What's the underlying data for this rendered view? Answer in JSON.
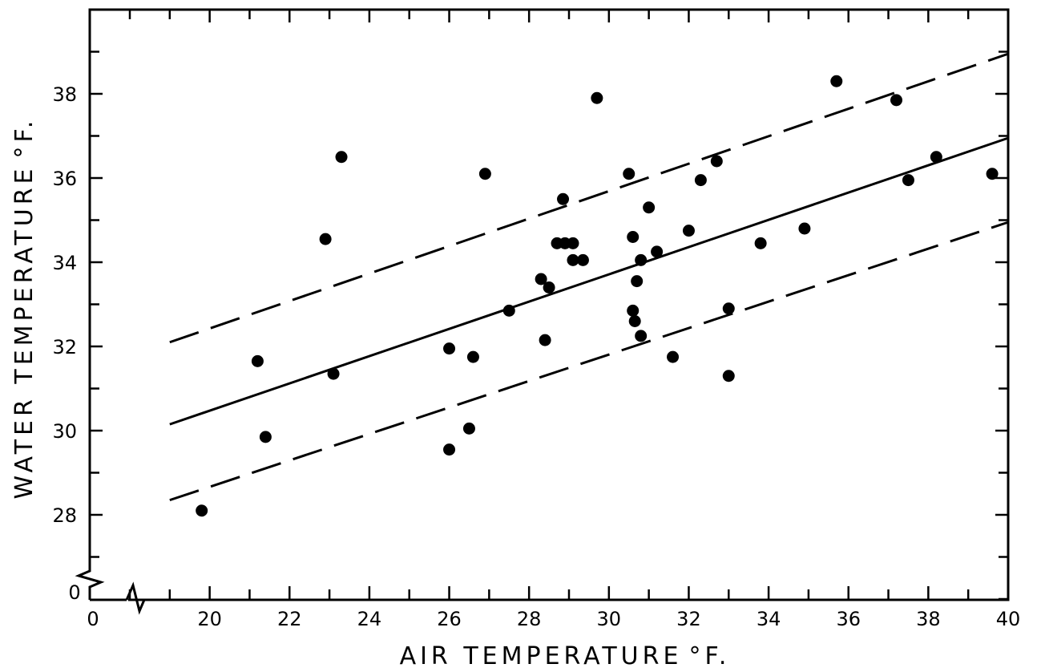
{
  "chart_data": {
    "type": "scatter",
    "title": "",
    "xlabel": "AIR TEMPERATURE",
    "ylabel": "WATER TEMPERATURE",
    "unit_symbol": "°F.",
    "xlim": [
      18,
      40
    ],
    "ylim": [
      26,
      40
    ],
    "axis_break": true,
    "x_origin_label": "0",
    "y_origin_label": "0",
    "x_ticks": [
      20,
      22,
      24,
      26,
      28,
      30,
      32,
      34,
      36,
      38,
      40
    ],
    "y_ticks": [
      28,
      30,
      32,
      34,
      36,
      38
    ],
    "x_minor_step": 1,
    "y_minor_step": 1,
    "grid": false,
    "legend": "none",
    "points": [
      {
        "x": 19.8,
        "y": 28.1
      },
      {
        "x": 21.2,
        "y": 31.65
      },
      {
        "x": 21.4,
        "y": 29.85
      },
      {
        "x": 22.9,
        "y": 34.55
      },
      {
        "x": 23.1,
        "y": 31.35
      },
      {
        "x": 23.3,
        "y": 36.5
      },
      {
        "x": 26.0,
        "y": 31.95
      },
      {
        "x": 26.0,
        "y": 29.55
      },
      {
        "x": 26.5,
        "y": 30.05
      },
      {
        "x": 26.6,
        "y": 31.75
      },
      {
        "x": 26.9,
        "y": 36.1
      },
      {
        "x": 27.5,
        "y": 32.85
      },
      {
        "x": 28.3,
        "y": 33.6
      },
      {
        "x": 28.4,
        "y": 32.15
      },
      {
        "x": 28.5,
        "y": 33.4
      },
      {
        "x": 28.7,
        "y": 34.45
      },
      {
        "x": 28.85,
        "y": 35.5
      },
      {
        "x": 28.9,
        "y": 34.45
      },
      {
        "x": 29.1,
        "y": 34.45
      },
      {
        "x": 29.1,
        "y": 34.05
      },
      {
        "x": 29.35,
        "y": 34.05
      },
      {
        "x": 29.7,
        "y": 37.9
      },
      {
        "x": 30.5,
        "y": 36.1
      },
      {
        "x": 30.6,
        "y": 34.6
      },
      {
        "x": 30.6,
        "y": 32.85
      },
      {
        "x": 30.65,
        "y": 32.6
      },
      {
        "x": 30.7,
        "y": 33.55
      },
      {
        "x": 30.8,
        "y": 34.05
      },
      {
        "x": 30.8,
        "y": 32.25
      },
      {
        "x": 31.0,
        "y": 35.3
      },
      {
        "x": 31.2,
        "y": 34.25
      },
      {
        "x": 31.6,
        "y": 31.75
      },
      {
        "x": 32.0,
        "y": 34.75
      },
      {
        "x": 32.3,
        "y": 35.95
      },
      {
        "x": 32.7,
        "y": 36.4
      },
      {
        "x": 33.0,
        "y": 32.9
      },
      {
        "x": 33.0,
        "y": 31.3
      },
      {
        "x": 33.8,
        "y": 34.45
      },
      {
        "x": 34.9,
        "y": 34.8
      },
      {
        "x": 35.7,
        "y": 38.3
      },
      {
        "x": 37.2,
        "y": 37.85
      },
      {
        "x": 37.5,
        "y": 35.95
      },
      {
        "x": 38.2,
        "y": 36.5
      },
      {
        "x": 39.6,
        "y": 36.1
      }
    ],
    "lines": [
      {
        "style": "solid",
        "x": [
          19,
          40
        ],
        "y": [
          30.15,
          36.95
        ]
      },
      {
        "style": "dashed",
        "x": [
          19,
          40
        ],
        "y": [
          32.1,
          38.95
        ]
      },
      {
        "style": "dashed",
        "x": [
          19,
          40
        ],
        "y": [
          28.35,
          34.95
        ]
      }
    ]
  }
}
